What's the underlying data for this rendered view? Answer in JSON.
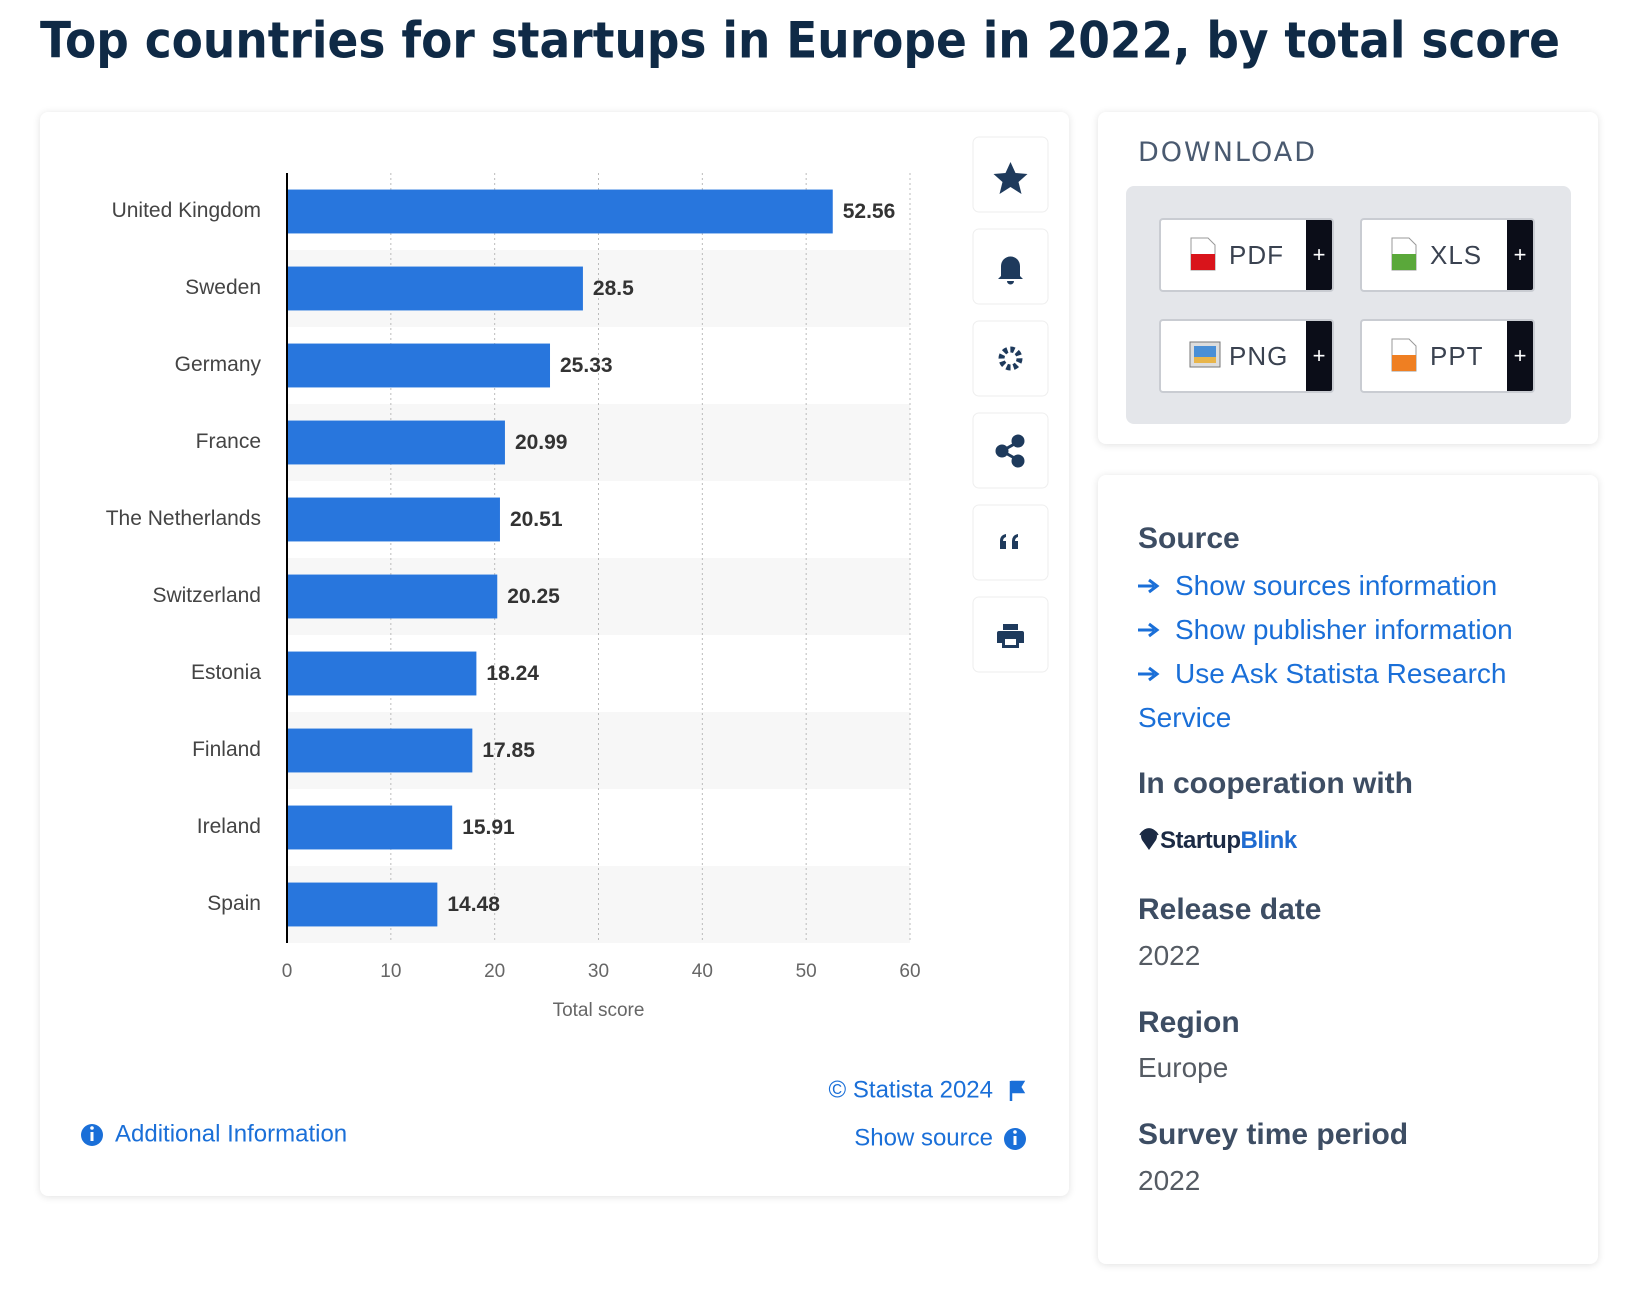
{
  "title": "Top countries for startups in Europe in 2022, by total score",
  "chart_data": {
    "type": "bar",
    "orientation": "horizontal",
    "categories": [
      "United Kingdom",
      "Sweden",
      "Germany",
      "France",
      "The Netherlands",
      "Switzerland",
      "Estonia",
      "Finland",
      "Ireland",
      "Spain"
    ],
    "values": [
      52.56,
      28.5,
      25.33,
      20.99,
      20.51,
      20.25,
      18.24,
      17.85,
      15.91,
      14.48
    ],
    "color": "#2876dd",
    "xlabel": "Total score",
    "xlim": [
      0,
      60
    ],
    "xticks": [
      0,
      10,
      20,
      30,
      40,
      50,
      60
    ],
    "grid": true
  },
  "chart_footer": {
    "copyright": "© Statista 2024",
    "show_source": "Show source",
    "additional_information": "Additional Information"
  },
  "download": {
    "heading": "DOWNLOAD",
    "formats": [
      "PDF",
      "XLS",
      "PNG",
      "PPT"
    ],
    "add": "+"
  },
  "details": {
    "source_heading": "Source",
    "links": [
      "Show sources information",
      "Show publisher information",
      "Use Ask Statista Research Service"
    ],
    "cooperation_heading": "In cooperation with",
    "partner": [
      "Startup",
      "Blink"
    ],
    "release_date_heading": "Release date",
    "release_date": "2022",
    "region_heading": "Region",
    "region": "Europe",
    "survey_period_heading": "Survey time period",
    "survey_period": "2022"
  }
}
